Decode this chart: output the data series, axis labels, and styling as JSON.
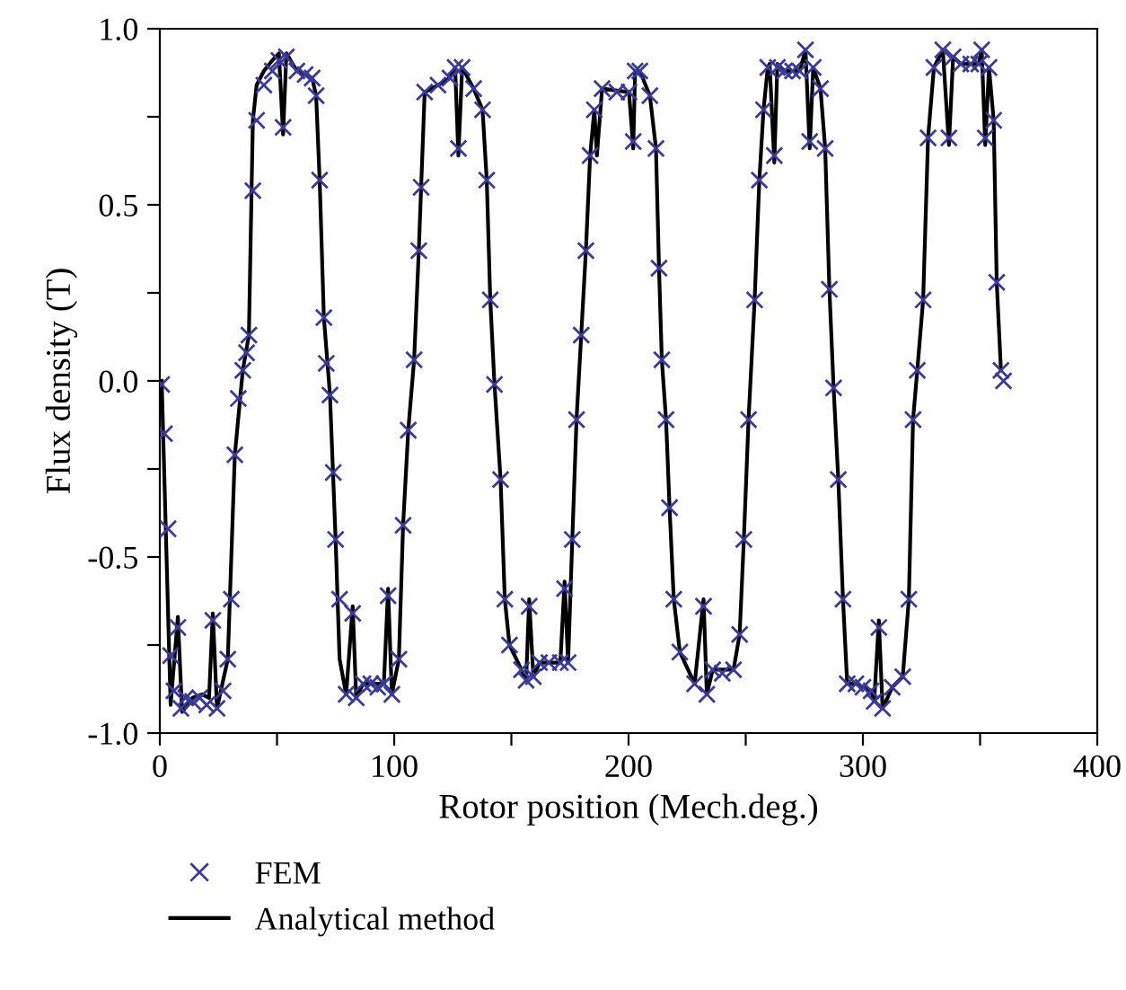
{
  "chart_data": {
    "type": "line",
    "xlabel": "Rotor position (Mech.deg.)",
    "ylabel": "Flux density (T)",
    "xlim": [
      0,
      400
    ],
    "ylim": [
      -1.0,
      1.0
    ],
    "xticks": [
      0,
      {
        "value": 50,
        "label": null
      },
      100,
      {
        "value": 150,
        "label": null
      },
      200,
      {
        "value": 250,
        "label": null
      },
      300,
      {
        "value": 350,
        "label": null
      },
      400
    ],
    "yticks": [
      {
        "value": -1.0,
        "label": "-1.0"
      },
      {
        "value": -0.75,
        "label": null
      },
      {
        "value": -0.5,
        "label": "-0.5"
      },
      {
        "value": -0.25,
        "label": null
      },
      {
        "value": 0.0,
        "label": "0.0"
      },
      {
        "value": 0.25,
        "label": null
      },
      {
        "value": 0.5,
        "label": "0.5"
      },
      {
        "value": 0.75,
        "label": null
      },
      {
        "value": 1.0,
        "label": "1.0"
      }
    ],
    "grid": false,
    "legend": "bottom left",
    "series": [
      {
        "name": "FEM",
        "type": "scatter",
        "marker": "cross",
        "color": "#3a3a9a",
        "x": [
          0.8,
          2,
          3.5,
          4.6,
          6,
          7.7,
          9,
          11,
          14,
          17,
          20,
          22.6,
          24.4,
          27,
          29,
          30.5,
          32,
          33.5,
          35.4,
          37,
          38,
          39.7,
          41.3,
          44.4,
          48,
          50.8,
          52.6,
          54,
          58.5,
          62,
          65,
          66.7,
          68.2,
          70,
          71,
          72.6,
          74,
          75,
          76.7,
          79.5,
          82.3,
          83.8,
          86.7,
          90,
          93,
          95.6,
          97.4,
          99,
          102,
          103.8,
          106,
          108.5,
          110.5,
          111.5,
          113,
          118.7,
          123.8,
          126,
          127.4,
          129,
          133.9,
          137.7,
          139.5,
          141,
          142.8,
          145.4,
          147.2,
          149.2,
          154.3,
          156.3,
          157.6,
          159.4,
          162,
          166,
          170.9,
          172.7,
          174.2,
          176,
          177.8,
          179.8,
          181.8,
          183.6,
          185.4,
          188.7,
          195,
          200.2,
          202,
          202.8,
          204.8,
          209.1,
          211.7,
          213,
          214.2,
          216,
          217.5,
          219.3,
          221.9,
          228.2,
          232,
          233.4,
          235.9,
          240,
          244.8,
          247.4,
          249.2,
          251.2,
          253.8,
          255.8,
          257.6,
          259.4,
          262.2,
          263.5,
          266.5,
          270,
          273,
          275.5,
          277.3,
          278.8,
          281.9,
          283.9,
          285.7,
          287.5,
          289.5,
          291.5,
          293.3,
          297,
          300,
          303.5,
          304.8,
          306.8,
          308.4,
          312.5,
          317,
          319.6,
          321.4,
          323.2,
          325.7,
          327.8,
          330.3,
          334.1,
          336.7,
          338.5,
          341.8,
          346,
          349.4,
          350.7,
          352.2,
          353.8,
          355.8,
          357.1,
          358.9,
          360
        ],
        "values": [
          -0.01,
          -0.15,
          -0.42,
          -0.78,
          -0.88,
          -0.7,
          -0.93,
          -0.9,
          -0.91,
          -0.9,
          -0.92,
          -0.68,
          -0.93,
          -0.88,
          -0.79,
          -0.62,
          -0.21,
          -0.05,
          0.03,
          0.08,
          0.13,
          0.54,
          0.74,
          0.84,
          0.88,
          0.91,
          0.72,
          0.92,
          0.88,
          0.87,
          0.86,
          0.81,
          0.57,
          0.18,
          0.05,
          -0.04,
          -0.26,
          -0.45,
          -0.62,
          -0.89,
          -0.66,
          -0.9,
          -0.86,
          -0.86,
          -0.87,
          -0.86,
          -0.61,
          -0.89,
          -0.79,
          -0.41,
          -0.14,
          0.06,
          0.37,
          0.55,
          0.82,
          0.84,
          0.86,
          0.89,
          0.66,
          0.89,
          0.83,
          0.77,
          0.57,
          0.23,
          -0.01,
          -0.28,
          -0.62,
          -0.75,
          -0.82,
          -0.85,
          -0.64,
          -0.84,
          -0.8,
          -0.8,
          -0.8,
          -0.59,
          -0.8,
          -0.45,
          -0.11,
          0.13,
          0.37,
          0.64,
          0.77,
          0.83,
          0.82,
          0.82,
          0.68,
          0.88,
          0.88,
          0.81,
          0.66,
          0.32,
          0.06,
          -0.11,
          -0.36,
          -0.62,
          -0.77,
          -0.86,
          -0.64,
          -0.89,
          -0.82,
          -0.83,
          -0.82,
          -0.72,
          -0.45,
          -0.11,
          0.23,
          0.57,
          0.77,
          0.89,
          0.64,
          0.89,
          0.88,
          0.88,
          0.88,
          0.94,
          0.68,
          0.89,
          0.83,
          0.66,
          0.26,
          -0.02,
          -0.28,
          -0.62,
          -0.86,
          -0.86,
          -0.87,
          -0.88,
          -0.91,
          -0.7,
          -0.93,
          -0.87,
          -0.84,
          -0.62,
          -0.11,
          0.03,
          0.23,
          0.69,
          0.89,
          0.94,
          0.69,
          0.92,
          0.9,
          0.9,
          0.9,
          0.94,
          0.69,
          0.89,
          0.74,
          0.28,
          0.03,
          0.0
        ]
      },
      {
        "name": "Analytical method",
        "type": "line",
        "marker": "none",
        "line_style": "solid",
        "color": "#000000",
        "x": [
          0.8,
          4.6,
          7.7,
          9.5,
          14,
          18,
          21,
          22.6,
          24.4,
          29,
          32,
          35.4,
          38,
          39.7,
          41.3,
          44.4,
          48,
          50.8,
          52.6,
          54,
          58.5,
          65,
          66.7,
          68.2,
          70,
          72.6,
          75,
          76.7,
          79.5,
          82.3,
          83.8,
          86.7,
          95.6,
          97.4,
          99,
          102,
          103.8,
          106,
          108.5,
          110.5,
          111.5,
          113,
          118.7,
          123.8,
          126,
          127.4,
          129,
          133.9,
          137.7,
          139.5,
          141,
          142.8,
          145.4,
          147.2,
          149.2,
          154.3,
          156.3,
          157.6,
          159.4,
          162,
          170.9,
          172.7,
          174.2,
          176,
          177.8,
          179.8,
          181.8,
          183.6,
          185.4,
          186.5,
          188.7,
          200.2,
          202,
          202.8,
          204.8,
          209.1,
          211.7,
          213,
          214.2,
          216,
          217.5,
          219.3,
          221.9,
          228.2,
          232,
          233.4,
          235.9,
          244.8,
          247.4,
          249.2,
          251.2,
          253.8,
          255.8,
          257.6,
          259.4,
          260.2,
          262.2,
          263.5,
          266.5,
          273,
          275.5,
          277.3,
          278.8,
          281.9,
          283.9,
          285.7,
          287.5,
          289.5,
          291.5,
          293.3,
          297,
          303.5,
          304.8,
          306.8,
          308.4,
          312.5,
          317,
          319.6,
          321.4,
          323.2,
          325.7,
          327.8,
          330.3,
          334.1,
          336.7,
          338.5,
          341.8,
          349.4,
          350.7,
          352.2,
          353.8,
          355.8,
          357.1,
          358.9
        ],
        "values": [
          0.0,
          -0.92,
          -0.67,
          -0.94,
          -0.9,
          -0.89,
          -0.9,
          -0.66,
          -0.93,
          -0.79,
          -0.21,
          0.03,
          0.13,
          0.74,
          0.84,
          0.88,
          0.91,
          0.93,
          0.7,
          0.93,
          0.88,
          0.86,
          0.81,
          0.57,
          0.18,
          -0.04,
          -0.45,
          -0.79,
          -0.89,
          -0.64,
          -0.9,
          -0.86,
          -0.86,
          -0.59,
          -0.89,
          -0.79,
          -0.41,
          -0.14,
          0.06,
          0.37,
          0.55,
          0.82,
          0.84,
          0.86,
          0.89,
          0.64,
          0.89,
          0.83,
          0.77,
          0.57,
          0.23,
          -0.01,
          -0.28,
          -0.62,
          -0.75,
          -0.82,
          -0.85,
          -0.62,
          -0.84,
          -0.8,
          -0.8,
          -0.57,
          -0.8,
          -0.45,
          -0.11,
          0.13,
          0.37,
          0.64,
          0.77,
          0.64,
          0.83,
          0.82,
          0.66,
          0.88,
          0.88,
          0.81,
          0.66,
          0.32,
          0.06,
          -0.11,
          -0.36,
          -0.62,
          -0.77,
          -0.86,
          -0.62,
          -0.89,
          -0.82,
          -0.82,
          -0.72,
          -0.45,
          -0.11,
          0.23,
          0.57,
          0.77,
          0.89,
          0.9,
          0.62,
          0.9,
          0.88,
          0.88,
          0.94,
          0.66,
          0.89,
          0.83,
          0.66,
          0.26,
          -0.02,
          -0.28,
          -0.62,
          -0.86,
          -0.86,
          -0.88,
          -0.91,
          -0.68,
          -0.93,
          -0.87,
          -0.84,
          -0.62,
          -0.11,
          0.03,
          0.23,
          0.69,
          0.89,
          0.94,
          0.67,
          0.92,
          0.9,
          0.9,
          0.94,
          0.67,
          0.89,
          0.74,
          0.28,
          0.03
        ]
      }
    ]
  }
}
